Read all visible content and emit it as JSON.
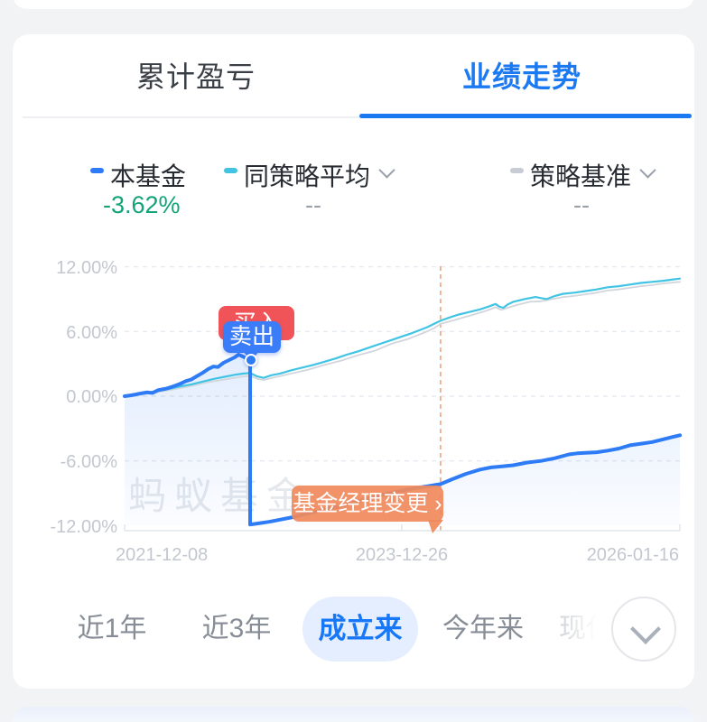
{
  "tabs": {
    "left": "累计盈亏",
    "right": "业绩走势"
  },
  "legend": {
    "items": [
      {
        "label": "本基金",
        "value": "-3.62%",
        "color": "#2e7bf6",
        "value_color": "#12a377"
      },
      {
        "label": "同策略平均",
        "value": "--",
        "color": "#41c4e4",
        "value_color": "#9aa0a8"
      },
      {
        "label": "策略基准",
        "value": "--",
        "color": "#c8cdd5",
        "value_color": "#9aa0a8"
      }
    ]
  },
  "chart_data": {
    "type": "line",
    "title": "业绩走势",
    "x_axis_labels": [
      "2021-12-08",
      "2023-12-26",
      "2026-01-16"
    ],
    "y_ticks": [
      "12.00%",
      "6.00%",
      "0.00%",
      "-6.00%",
      "-12.00%"
    ],
    "y_tick_values": [
      12,
      6,
      0,
      -6,
      -12
    ],
    "ylim": [
      -12,
      12
    ],
    "grid": "dashed-horizontal",
    "legend_position": "top",
    "watermark": "蚂蚁基金",
    "series": [
      {
        "name": "本基金",
        "color": "#2e7bf6",
        "final_value_pct": -3.62,
        "points": [
          [
            0,
            0
          ],
          [
            0.012,
            0.08
          ],
          [
            0.025,
            0.22
          ],
          [
            0.04,
            0.35
          ],
          [
            0.05,
            0.3
          ],
          [
            0.06,
            0.55
          ],
          [
            0.075,
            0.7
          ],
          [
            0.09,
            0.95
          ],
          [
            0.1,
            1.15
          ],
          [
            0.11,
            1.4
          ],
          [
            0.12,
            1.55
          ],
          [
            0.13,
            1.85
          ],
          [
            0.14,
            2.15
          ],
          [
            0.15,
            2.5
          ],
          [
            0.16,
            2.75
          ],
          [
            0.168,
            2.7
          ],
          [
            0.178,
            3.1
          ],
          [
            0.188,
            3.35
          ],
          [
            0.198,
            3.6
          ],
          [
            0.205,
            3.85
          ],
          [
            0.21,
            3.75
          ],
          [
            0.218,
            3.55
          ],
          [
            0.226,
            3.4
          ],
          [
            0.226,
            -11.9
          ],
          [
            0.24,
            -11.8
          ],
          [
            0.26,
            -11.65
          ],
          [
            0.28,
            -11.45
          ],
          [
            0.3,
            -11.25
          ],
          [
            0.32,
            -11.0
          ],
          [
            0.34,
            -10.75
          ],
          [
            0.36,
            -10.5
          ],
          [
            0.38,
            -10.3
          ],
          [
            0.4,
            -10.05
          ],
          [
            0.42,
            -9.75
          ],
          [
            0.44,
            -9.45
          ],
          [
            0.46,
            -9.2
          ],
          [
            0.48,
            -8.95
          ],
          [
            0.5,
            -8.75
          ],
          [
            0.52,
            -8.55
          ],
          [
            0.545,
            -8.35
          ],
          [
            0.569,
            -8.15
          ],
          [
            0.59,
            -7.7
          ],
          [
            0.615,
            -7.2
          ],
          [
            0.64,
            -6.8
          ],
          [
            0.66,
            -6.6
          ],
          [
            0.68,
            -6.5
          ],
          [
            0.7,
            -6.4
          ],
          [
            0.725,
            -6.15
          ],
          [
            0.75,
            -6.0
          ],
          [
            0.775,
            -5.75
          ],
          [
            0.8,
            -5.4
          ],
          [
            0.815,
            -5.3
          ],
          [
            0.83,
            -5.25
          ],
          [
            0.85,
            -5.2
          ],
          [
            0.87,
            -5.05
          ],
          [
            0.89,
            -4.85
          ],
          [
            0.91,
            -4.55
          ],
          [
            0.93,
            -4.4
          ],
          [
            0.95,
            -4.25
          ],
          [
            0.97,
            -4.0
          ],
          [
            0.985,
            -3.8
          ],
          [
            1.0,
            -3.62
          ]
        ]
      },
      {
        "name": "同策略平均",
        "color": "#41c4e4",
        "points": [
          [
            0,
            0
          ],
          [
            0.02,
            0.12
          ],
          [
            0.04,
            0.3
          ],
          [
            0.06,
            0.5
          ],
          [
            0.08,
            0.68
          ],
          [
            0.1,
            0.9
          ],
          [
            0.12,
            1.1
          ],
          [
            0.14,
            1.35
          ],
          [
            0.16,
            1.6
          ],
          [
            0.18,
            1.8
          ],
          [
            0.2,
            2.0
          ],
          [
            0.215,
            2.1
          ],
          [
            0.226,
            2.15
          ],
          [
            0.238,
            1.85
          ],
          [
            0.25,
            1.7
          ],
          [
            0.265,
            1.95
          ],
          [
            0.28,
            2.1
          ],
          [
            0.3,
            2.4
          ],
          [
            0.32,
            2.65
          ],
          [
            0.34,
            2.9
          ],
          [
            0.36,
            3.2
          ],
          [
            0.38,
            3.5
          ],
          [
            0.4,
            3.85
          ],
          [
            0.42,
            4.15
          ],
          [
            0.44,
            4.5
          ],
          [
            0.46,
            4.85
          ],
          [
            0.48,
            5.2
          ],
          [
            0.5,
            5.55
          ],
          [
            0.515,
            5.8
          ],
          [
            0.53,
            6.1
          ],
          [
            0.545,
            6.4
          ],
          [
            0.557,
            6.7
          ],
          [
            0.569,
            7.0
          ],
          [
            0.585,
            7.3
          ],
          [
            0.6,
            7.55
          ],
          [
            0.62,
            7.8
          ],
          [
            0.64,
            8.05
          ],
          [
            0.655,
            8.3
          ],
          [
            0.668,
            8.55
          ],
          [
            0.675,
            8.3
          ],
          [
            0.682,
            8.2
          ],
          [
            0.69,
            8.5
          ],
          [
            0.7,
            8.75
          ],
          [
            0.72,
            9.0
          ],
          [
            0.74,
            9.2
          ],
          [
            0.75,
            9.1
          ],
          [
            0.76,
            9.0
          ],
          [
            0.775,
            9.3
          ],
          [
            0.79,
            9.5
          ],
          [
            0.81,
            9.6
          ],
          [
            0.83,
            9.75
          ],
          [
            0.85,
            9.9
          ],
          [
            0.87,
            10.1
          ],
          [
            0.89,
            10.2
          ],
          [
            0.91,
            10.35
          ],
          [
            0.93,
            10.5
          ],
          [
            0.95,
            10.6
          ],
          [
            0.97,
            10.7
          ],
          [
            0.985,
            10.8
          ],
          [
            1.0,
            10.9
          ]
        ]
      },
      {
        "name": "策略基准",
        "color": "#d2d6dc",
        "points": [
          [
            0,
            0
          ],
          [
            0.03,
            0.15
          ],
          [
            0.06,
            0.4
          ],
          [
            0.09,
            0.65
          ],
          [
            0.12,
            0.95
          ],
          [
            0.15,
            1.3
          ],
          [
            0.18,
            1.55
          ],
          [
            0.21,
            1.8
          ],
          [
            0.226,
            1.9
          ],
          [
            0.24,
            1.6
          ],
          [
            0.25,
            1.5
          ],
          [
            0.27,
            1.75
          ],
          [
            0.3,
            2.1
          ],
          [
            0.33,
            2.45
          ],
          [
            0.36,
            2.9
          ],
          [
            0.39,
            3.3
          ],
          [
            0.42,
            3.8
          ],
          [
            0.45,
            4.2
          ],
          [
            0.48,
            4.85
          ],
          [
            0.51,
            5.3
          ],
          [
            0.54,
            5.9
          ],
          [
            0.557,
            6.3
          ],
          [
            0.569,
            6.7
          ],
          [
            0.59,
            7.0
          ],
          [
            0.61,
            7.3
          ],
          [
            0.63,
            7.6
          ],
          [
            0.65,
            7.9
          ],
          [
            0.668,
            8.25
          ],
          [
            0.678,
            8.0
          ],
          [
            0.69,
            8.2
          ],
          [
            0.71,
            8.5
          ],
          [
            0.73,
            8.75
          ],
          [
            0.75,
            8.8
          ],
          [
            0.77,
            9.0
          ],
          [
            0.79,
            9.2
          ],
          [
            0.81,
            9.3
          ],
          [
            0.83,
            9.45
          ],
          [
            0.85,
            9.6
          ],
          [
            0.87,
            9.8
          ],
          [
            0.89,
            9.9
          ],
          [
            0.91,
            10.05
          ],
          [
            0.93,
            10.2
          ],
          [
            0.95,
            10.3
          ],
          [
            0.97,
            10.45
          ],
          [
            1.0,
            10.6
          ]
        ]
      }
    ],
    "markers": {
      "buy_label": "买入",
      "sell_label": "卖出",
      "marker_x": 0.226,
      "marker_y_pct": 3.4,
      "event_label": "基金经理变更 ›",
      "event_x": 0.569
    }
  },
  "range_selector": {
    "options": [
      {
        "label": "近1年",
        "active": false
      },
      {
        "label": "近3年",
        "active": false
      },
      {
        "label": "成立来",
        "active": true
      },
      {
        "label": "今年来",
        "active": false
      },
      {
        "label": "现任",
        "active": false
      }
    ]
  }
}
